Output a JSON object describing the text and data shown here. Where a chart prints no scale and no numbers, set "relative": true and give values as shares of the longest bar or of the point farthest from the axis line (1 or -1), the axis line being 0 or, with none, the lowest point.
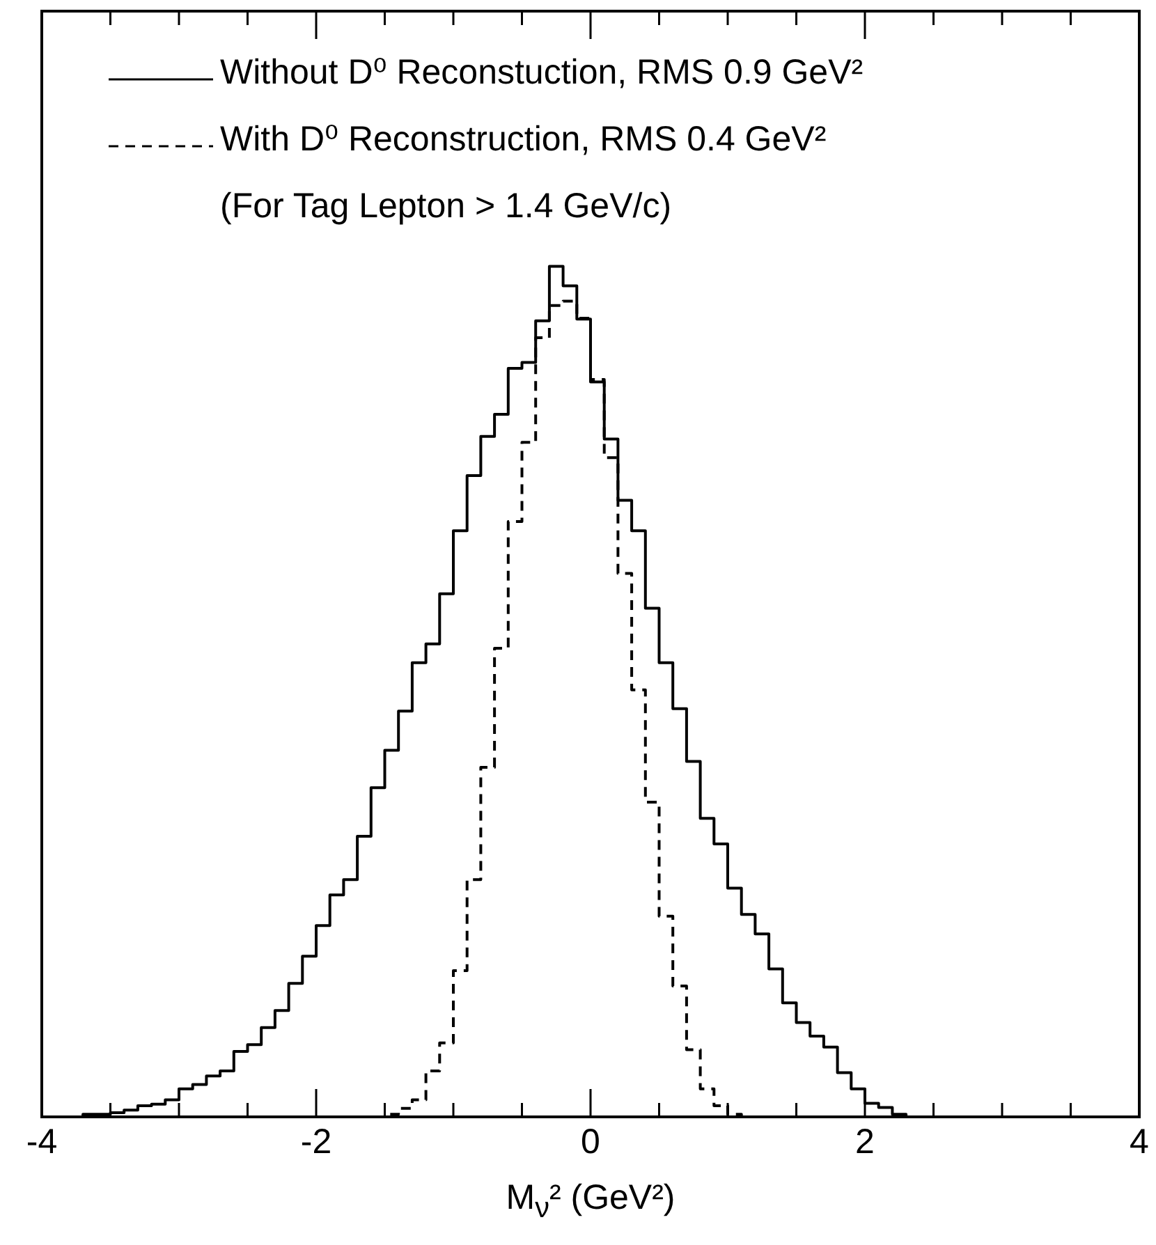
{
  "chart_data": {
    "type": "step",
    "relative": true,
    "xlabel": "M$_{ν}$² (GeV²)",
    "xlim": [
      -4,
      4
    ],
    "xticks": [
      -4,
      {
        "value": -3.5,
        "label": null
      },
      {
        "value": -3,
        "label": null
      },
      {
        "value": -2.5,
        "label": null
      },
      -2,
      {
        "value": -1.5,
        "label": null
      },
      {
        "value": -1,
        "label": null
      },
      {
        "value": -0.5,
        "label": null
      },
      0,
      {
        "value": 0.5,
        "label": null
      },
      {
        "value": 1,
        "label": null
      },
      {
        "value": 1.5,
        "label": null
      },
      2,
      {
        "value": 2.5,
        "label": null
      },
      {
        "value": 3,
        "label": null
      },
      {
        "value": 3.5,
        "label": null
      },
      4
    ],
    "legend": "top left",
    "marker": "none",
    "annotations": [
      "(For Tag Lepton > 1.4 GeV/c)"
    ],
    "x": [
      -4,
      -3.9,
      -3.8,
      -3.7,
      -3.6,
      -3.5,
      -3.4,
      -3.3,
      -3.2,
      -3.1,
      -3,
      -2.9,
      -2.8,
      -2.7,
      -2.6,
      -2.5,
      -2.4,
      -2.3,
      -2.2,
      -2.1,
      -2,
      -1.9,
      -1.8,
      -1.7,
      -1.6,
      -1.5,
      -1.4,
      -1.3,
      -1.2,
      -1.1,
      -1,
      -0.9,
      -0.8,
      -0.7,
      -0.6,
      -0.5,
      -0.4,
      -0.3,
      -0.2,
      -0.1,
      0,
      0.1,
      0.2,
      0.3,
      0.4,
      0.5,
      0.6,
      0.7,
      0.8,
      0.9,
      1,
      1.1,
      1.2,
      1.3,
      1.4,
      1.5,
      1.6,
      1.7,
      1.8,
      1.9,
      2,
      2.1,
      2.2,
      2.3,
      2.4,
      2.5,
      2.6,
      2.7,
      2.8,
      2.9,
      3,
      3.1,
      3.2,
      3.3,
      3.4,
      3.5,
      3.6,
      3.7,
      3.8,
      3.9
    ],
    "series": [
      {
        "name": "Without D⁰ Reconstuction, RMS 0.9 GeV²",
        "color": "#000000",
        "line_style": "solid",
        "values": [
          0,
          0,
          0,
          0,
          0.003,
          0.003,
          0.005,
          0.008,
          0.013,
          0.015,
          0.02,
          0.033,
          0.038,
          0.048,
          0.054,
          0.077,
          0.085,
          0.105,
          0.125,
          0.157,
          0.189,
          0.225,
          0.261,
          0.279,
          0.33,
          0.387,
          0.431,
          0.477,
          0.534,
          0.556,
          0.615,
          0.689,
          0.754,
          0.8,
          0.826,
          0.88,
          0.887,
          0.936,
          1,
          0.977,
          0.938,
          0.864,
          0.797,
          0.725,
          0.689,
          0.598,
          0.534,
          0.48,
          0.418,
          0.351,
          0.321,
          0.269,
          0.238,
          0.215,
          0.174,
          0.134,
          0.111,
          0.095,
          0.082,
          0.052,
          0.033,
          0.016,
          0.011,
          0.003,
          0,
          0,
          0,
          0,
          0,
          0,
          0,
          0,
          0,
          0,
          0,
          0,
          0,
          0,
          0,
          0
        ]
      },
      {
        "name": "With D⁰ Reconstruction, RMS 0.4 GeV²",
        "color": "#000000",
        "line_style": "dashed",
        "values": [
          0,
          0,
          0,
          0,
          0,
          0,
          0,
          0,
          0,
          0,
          0,
          0,
          0,
          0,
          0,
          0,
          0,
          0,
          0,
          0,
          0,
          0,
          0,
          0,
          0,
          0,
          0.003,
          0.01,
          0.02,
          0.054,
          0.087,
          0.172,
          0.279,
          0.411,
          0.551,
          0.7,
          0.793,
          0.916,
          0.954,
          0.959,
          0.939,
          0.867,
          0.775,
          0.639,
          0.502,
          0.37,
          0.236,
          0.154,
          0.079,
          0.033,
          0.013,
          0.003,
          0,
          0,
          0,
          0,
          0,
          0,
          0,
          0,
          0,
          0,
          0,
          0,
          0,
          0,
          0,
          0,
          0,
          0,
          0,
          0,
          0,
          0,
          0,
          0,
          0,
          0,
          0,
          0
        ]
      }
    ]
  }
}
